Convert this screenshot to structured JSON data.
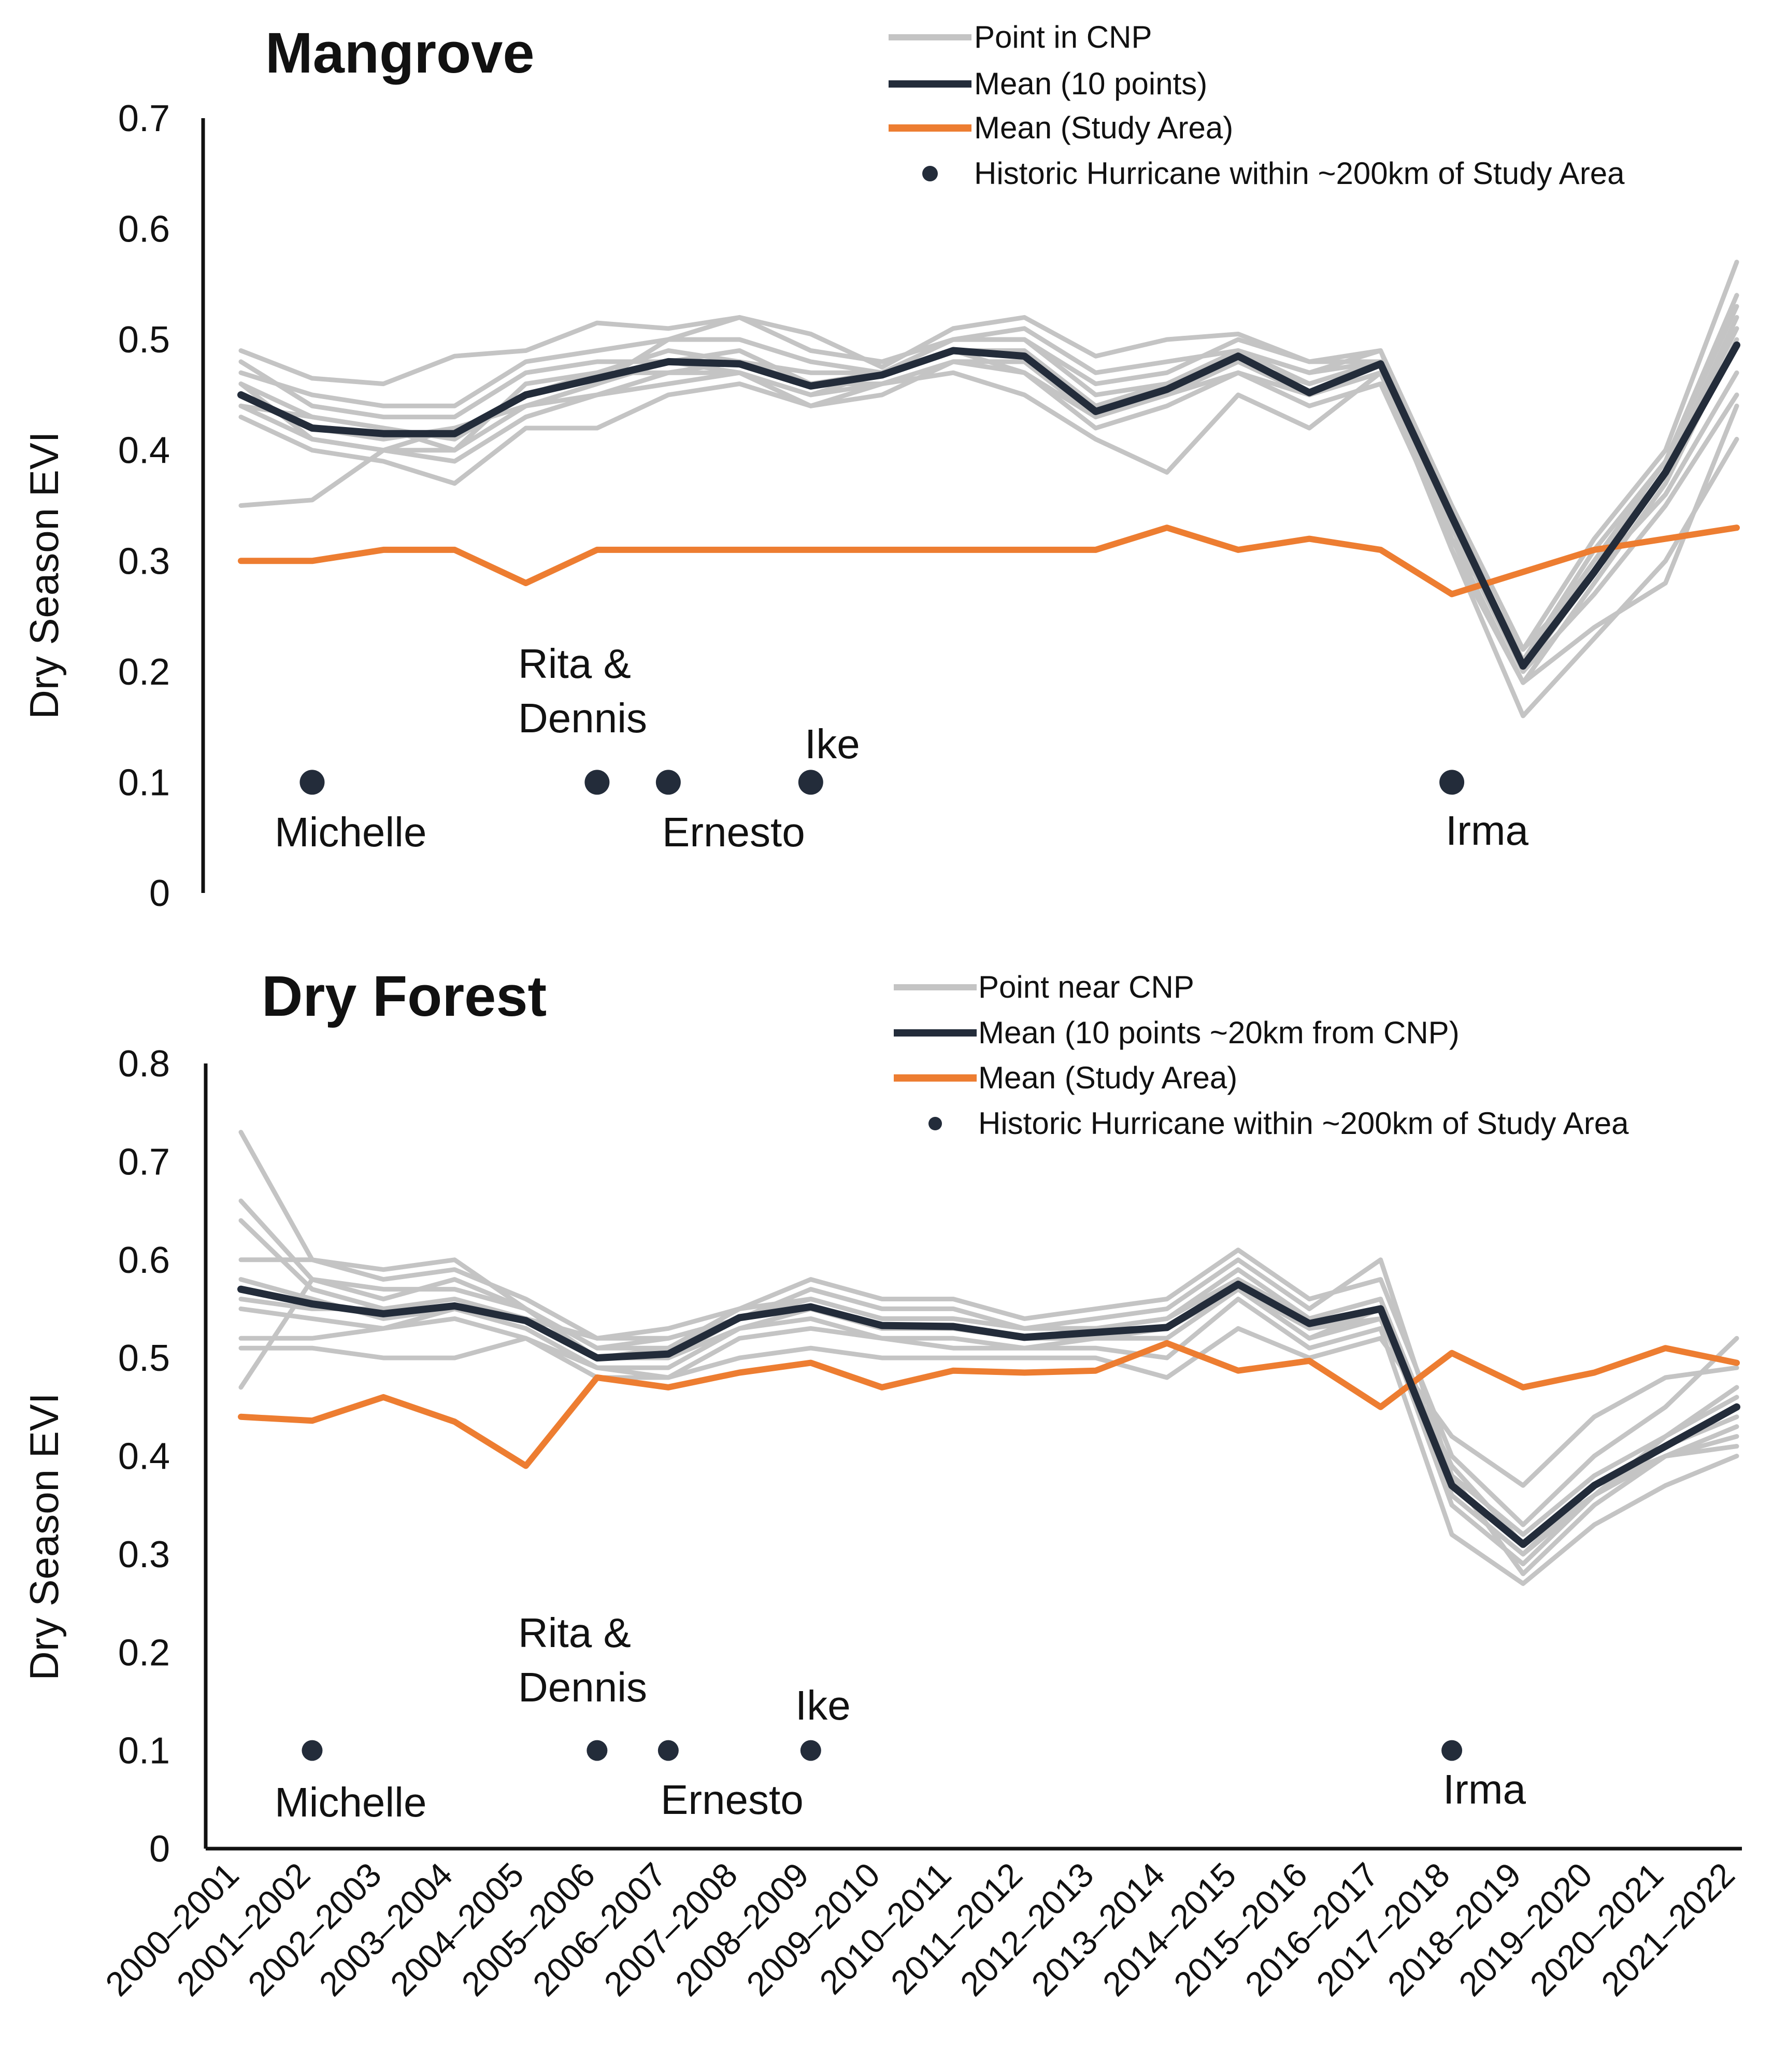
{
  "chart_data": [
    {
      "type": "line",
      "title": "Mangrove",
      "ylabel": "Dry Season EVI",
      "ylim": [
        0,
        0.7
      ],
      "yticks": [
        "0",
        "0.1",
        "0.2",
        "0.3",
        "0.4",
        "0.5",
        "0.6",
        "0.7"
      ],
      "categories": [
        "2000–2001",
        "2001–2002",
        "2002–2003",
        "2003–2004",
        "2004–2005",
        "2005–2006",
        "2006–2007",
        "2007–2008",
        "2008–2009",
        "2009–2010",
        "2010–2011",
        "2011–2012",
        "2012–2013",
        "2013–2014",
        "2014–2015",
        "2015–2016",
        "2016–2017",
        "2017–2018",
        "2018–2019",
        "2019–2020",
        "2020–2021",
        "2021–2022"
      ],
      "legend": {
        "position": "top-right",
        "point_label": "Point in CNP",
        "mean_label": "Mean (10 points)",
        "study_label": "Mean (Study Area)",
        "hurricane_label": "Historic Hurricane within ~200km of Study Area"
      },
      "colors": {
        "point": "#c4c4c4",
        "mean": "#232c3a",
        "study": "#ed7d31",
        "hurricane": "#232c3a"
      },
      "series": [
        {
          "name": "Mean (10 points)",
          "kind": "mean",
          "values": [
            0.45,
            0.42,
            0.415,
            0.415,
            0.45,
            0.465,
            0.48,
            0.478,
            0.458,
            0.468,
            0.49,
            0.485,
            0.435,
            0.455,
            0.485,
            0.452,
            0.478,
            0.34,
            0.205,
            0.29,
            0.38,
            0.495
          ]
        },
        {
          "name": "Mean (Study Area)",
          "kind": "study",
          "values": [
            0.3,
            0.3,
            0.31,
            0.31,
            0.28,
            0.31,
            0.31,
            0.31,
            0.31,
            0.31,
            0.31,
            0.31,
            0.31,
            0.33,
            0.31,
            0.32,
            0.31,
            0.27,
            0.29,
            0.31,
            0.32,
            0.33
          ]
        },
        {
          "name": "Point in CNP",
          "kind": "point",
          "values": [
            0.49,
            0.465,
            0.46,
            0.485,
            0.49,
            0.515,
            0.51,
            0.52,
            0.505,
            0.475,
            0.51,
            0.52,
            0.485,
            0.5,
            0.505,
            0.48,
            0.49,
            0.35,
            0.22,
            0.32,
            0.4,
            0.57
          ]
        },
        {
          "name": "Point in CNP",
          "kind": "point",
          "values": [
            0.35,
            0.355,
            0.4,
            0.42,
            0.44,
            0.46,
            0.5,
            0.52,
            0.49,
            0.48,
            0.5,
            0.51,
            0.47,
            0.48,
            0.49,
            0.47,
            0.48,
            0.33,
            0.21,
            0.31,
            0.39,
            0.54
          ]
        },
        {
          "name": "Point in CNP",
          "kind": "point",
          "values": [
            0.44,
            0.41,
            0.4,
            0.39,
            0.43,
            0.45,
            0.46,
            0.47,
            0.44,
            0.45,
            0.48,
            0.47,
            0.42,
            0.44,
            0.47,
            0.44,
            0.46,
            0.32,
            0.19,
            0.28,
            0.37,
            0.5
          ]
        },
        {
          "name": "Point in CNP",
          "kind": "point",
          "values": [
            0.46,
            0.43,
            0.42,
            0.4,
            0.46,
            0.47,
            0.49,
            0.48,
            0.47,
            0.47,
            0.49,
            0.49,
            0.44,
            0.46,
            0.48,
            0.46,
            0.48,
            0.34,
            0.2,
            0.29,
            0.38,
            0.52
          ]
        },
        {
          "name": "Point in CNP",
          "kind": "point",
          "values": [
            0.43,
            0.4,
            0.39,
            0.37,
            0.42,
            0.42,
            0.45,
            0.46,
            0.44,
            0.46,
            0.47,
            0.45,
            0.41,
            0.38,
            0.45,
            0.42,
            0.47,
            0.31,
            0.16,
            0.23,
            0.3,
            0.41
          ]
        },
        {
          "name": "Point in CNP",
          "kind": "point",
          "values": [
            0.48,
            0.44,
            0.43,
            0.43,
            0.47,
            0.48,
            0.48,
            0.49,
            0.46,
            0.47,
            0.5,
            0.5,
            0.45,
            0.46,
            0.49,
            0.47,
            0.49,
            0.33,
            0.2,
            0.27,
            0.35,
            0.45
          ]
        },
        {
          "name": "Point in CNP",
          "kind": "point",
          "values": [
            0.45,
            0.42,
            0.41,
            0.42,
            0.44,
            0.46,
            0.48,
            0.47,
            0.45,
            0.46,
            0.48,
            0.48,
            0.43,
            0.45,
            0.48,
            0.45,
            0.47,
            0.32,
            0.22,
            0.29,
            0.36,
            0.47
          ]
        },
        {
          "name": "Point in CNP",
          "kind": "point",
          "values": [
            0.47,
            0.45,
            0.44,
            0.44,
            0.48,
            0.49,
            0.5,
            0.5,
            0.48,
            0.47,
            0.5,
            0.5,
            0.46,
            0.47,
            0.5,
            0.48,
            0.48,
            0.33,
            0.21,
            0.3,
            0.39,
            0.53
          ]
        },
        {
          "name": "Point in CNP",
          "kind": "point",
          "values": [
            0.44,
            0.43,
            0.42,
            0.41,
            0.45,
            0.47,
            0.47,
            0.48,
            0.46,
            0.46,
            0.48,
            0.48,
            0.44,
            0.45,
            0.47,
            0.45,
            0.47,
            0.31,
            0.19,
            0.24,
            0.28,
            0.44
          ]
        },
        {
          "name": "Point in CNP",
          "kind": "point",
          "values": [
            0.46,
            0.41,
            0.4,
            0.4,
            0.44,
            0.45,
            0.47,
            0.47,
            0.45,
            0.47,
            0.49,
            0.47,
            0.43,
            0.46,
            0.49,
            0.46,
            0.48,
            0.34,
            0.21,
            0.3,
            0.38,
            0.51
          ]
        }
      ],
      "hurricanes": [
        {
          "name": "Michelle",
          "x": 1,
          "y": 0.1
        },
        {
          "name": "Rita & Dennis",
          "name_line1": "Rita &",
          "name_line2": "Dennis",
          "x": 5,
          "y": 0.1
        },
        {
          "name": "Ernesto",
          "x": 6,
          "y": 0.1
        },
        {
          "name": "Ike",
          "x": 8,
          "y": 0.1
        },
        {
          "name": "Irma",
          "x": 17,
          "y": 0.1
        }
      ]
    },
    {
      "type": "line",
      "title": "Dry Forest",
      "ylabel": "Dry Season EVI",
      "ylim": [
        0,
        0.8
      ],
      "yticks": [
        "0",
        "0.1",
        "0.2",
        "0.3",
        "0.4",
        "0.5",
        "0.6",
        "0.7",
        "0.8"
      ],
      "categories": [
        "2000–2001",
        "2001–2002",
        "2002–2003",
        "2003–2004",
        "2004–2005",
        "2005–2006",
        "2006–2007",
        "2007–2008",
        "2008–2009",
        "2009–2010",
        "2010–2011",
        "2011–2012",
        "2012–2013",
        "2013–2014",
        "2014–2015",
        "2015–2016",
        "2016–2017",
        "2017–2018",
        "2018–2019",
        "2019–2020",
        "2020–2021",
        "2021–2022"
      ],
      "legend": {
        "position": "top-right",
        "point_label": "Point near CNP",
        "mean_label": "Mean (10 points ~20km from CNP)",
        "study_label": "Mean (Study Area)",
        "hurricane_label": "Historic Hurricane within ~200km of Study Area"
      },
      "colors": {
        "point": "#c4c4c4",
        "mean": "#232c3a",
        "study": "#ed7d31",
        "hurricane": "#232c3a"
      },
      "series": [
        {
          "name": "Mean (10 points ~20km from CNP)",
          "kind": "mean",
          "values": [
            0.57,
            0.555,
            0.545,
            0.553,
            0.538,
            0.5,
            0.504,
            0.541,
            0.552,
            0.533,
            0.532,
            0.521,
            0.526,
            0.531,
            0.575,
            0.535,
            0.55,
            0.37,
            0.31,
            0.37,
            0.41,
            0.45
          ]
        },
        {
          "name": "Mean (Study Area)",
          "kind": "study",
          "values": [
            0.44,
            0.436,
            0.46,
            0.435,
            0.39,
            0.48,
            0.47,
            0.485,
            0.495,
            0.47,
            0.487,
            0.485,
            0.487,
            0.515,
            0.487,
            0.497,
            0.45,
            0.505,
            0.47,
            0.485,
            0.51,
            0.495
          ]
        },
        {
          "name": "Point near CNP",
          "kind": "point",
          "values": [
            0.73,
            0.6,
            0.58,
            0.59,
            0.56,
            0.52,
            0.53,
            0.55,
            0.58,
            0.56,
            0.56,
            0.54,
            0.55,
            0.56,
            0.61,
            0.56,
            0.58,
            0.4,
            0.33,
            0.4,
            0.45,
            0.52
          ]
        },
        {
          "name": "Point near CNP",
          "kind": "point",
          "values": [
            0.47,
            0.58,
            0.57,
            0.57,
            0.55,
            0.5,
            0.5,
            0.53,
            0.55,
            0.53,
            0.53,
            0.52,
            0.52,
            0.52,
            0.57,
            0.52,
            0.55,
            0.36,
            0.3,
            0.37,
            0.41,
            0.44
          ]
        },
        {
          "name": "Point near CNP",
          "kind": "point",
          "values": [
            0.66,
            0.58,
            0.56,
            0.58,
            0.55,
            0.51,
            0.52,
            0.54,
            0.57,
            0.55,
            0.55,
            0.53,
            0.54,
            0.55,
            0.6,
            0.55,
            0.6,
            0.38,
            0.28,
            0.35,
            0.4,
            0.42
          ]
        },
        {
          "name": "Point near CNP",
          "kind": "point",
          "values": [
            0.6,
            0.6,
            0.59,
            0.6,
            0.55,
            0.51,
            0.51,
            0.55,
            0.56,
            0.54,
            0.54,
            0.53,
            0.53,
            0.54,
            0.58,
            0.54,
            0.56,
            0.38,
            0.32,
            0.38,
            0.42,
            0.46
          ]
        },
        {
          "name": "Point near CNP",
          "kind": "point",
          "values": [
            0.52,
            0.52,
            0.53,
            0.54,
            0.52,
            0.48,
            0.48,
            0.52,
            0.53,
            0.52,
            0.51,
            0.51,
            0.51,
            0.5,
            0.56,
            0.51,
            0.53,
            0.32,
            0.27,
            0.33,
            0.37,
            0.4
          ]
        },
        {
          "name": "Point near CNP",
          "kind": "point",
          "values": [
            0.55,
            0.54,
            0.53,
            0.55,
            0.53,
            0.49,
            0.49,
            0.53,
            0.54,
            0.52,
            0.52,
            0.51,
            0.52,
            0.52,
            0.57,
            0.52,
            0.54,
            0.37,
            0.31,
            0.36,
            0.4,
            0.43
          ]
        },
        {
          "name": "Point near CNP",
          "kind": "point",
          "values": [
            0.58,
            0.56,
            0.54,
            0.55,
            0.54,
            0.5,
            0.5,
            0.54,
            0.55,
            0.53,
            0.53,
            0.52,
            0.53,
            0.53,
            0.58,
            0.53,
            0.55,
            0.35,
            0.29,
            0.36,
            0.41,
            0.45
          ]
        },
        {
          "name": "Point near CNP",
          "kind": "point",
          "values": [
            0.51,
            0.51,
            0.5,
            0.5,
            0.52,
            0.49,
            0.48,
            0.5,
            0.51,
            0.5,
            0.5,
            0.5,
            0.5,
            0.48,
            0.53,
            0.5,
            0.52,
            0.42,
            0.37,
            0.44,
            0.48,
            0.49
          ]
        },
        {
          "name": "Point near CNP",
          "kind": "point",
          "values": [
            0.64,
            0.57,
            0.55,
            0.56,
            0.54,
            0.5,
            0.51,
            0.54,
            0.56,
            0.54,
            0.54,
            0.53,
            0.53,
            0.54,
            0.59,
            0.54,
            0.56,
            0.36,
            0.3,
            0.36,
            0.42,
            0.47
          ]
        },
        {
          "name": "Point near CNP",
          "kind": "point",
          "values": [
            0.56,
            0.55,
            0.55,
            0.55,
            0.54,
            0.52,
            0.52,
            0.54,
            0.55,
            0.53,
            0.53,
            0.52,
            0.52,
            0.53,
            0.57,
            0.53,
            0.54,
            0.39,
            0.31,
            0.37,
            0.4,
            0.41
          ]
        }
      ],
      "hurricanes": [
        {
          "name": "Michelle",
          "x": 1,
          "y": 0.1
        },
        {
          "name": "Rita & Dennis",
          "name_line1": "Rita &",
          "name_line2": "Dennis",
          "x": 5,
          "y": 0.1
        },
        {
          "name": "Ernesto",
          "x": 6,
          "y": 0.1
        },
        {
          "name": "Ike",
          "x": 8,
          "y": 0.1
        },
        {
          "name": "Irma",
          "x": 17,
          "y": 0.1
        }
      ]
    }
  ]
}
